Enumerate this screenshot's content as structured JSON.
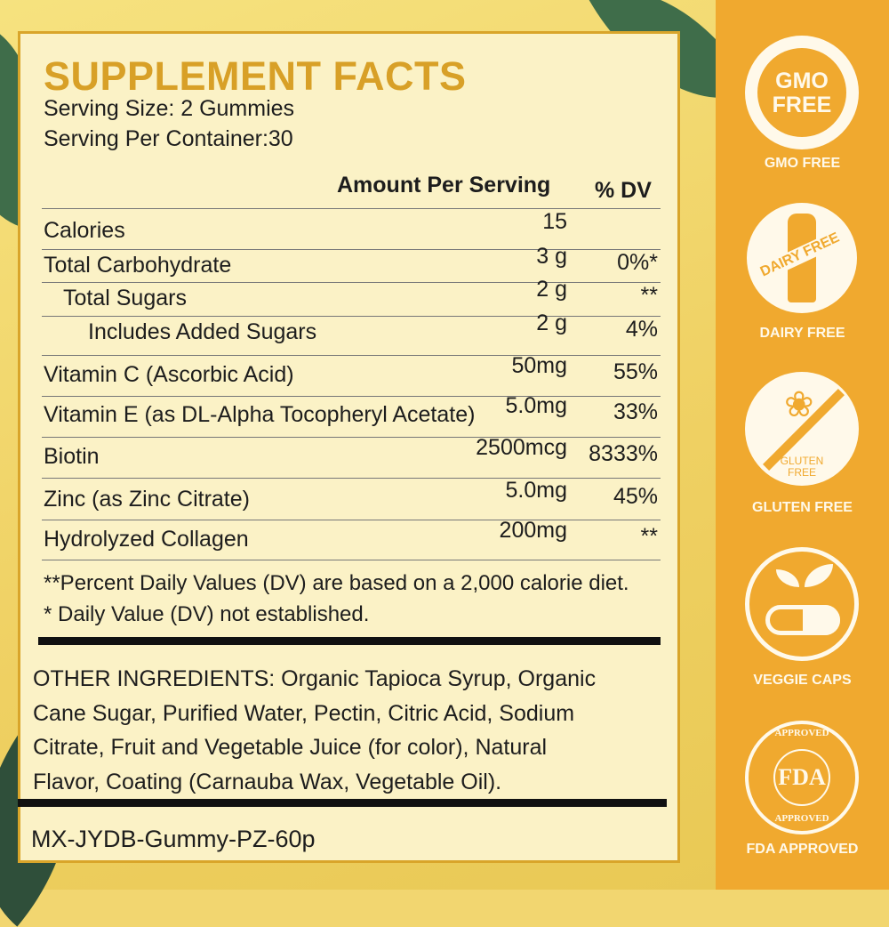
{
  "title": "SUPPLEMENT FACTS",
  "serving_size": "Serving Size: 2 Gummies",
  "servings_per_container": "Serving Per Container:30",
  "headers": {
    "amount": "Amount Per Serving",
    "dv": "% DV"
  },
  "rows": [
    {
      "name": "Calories",
      "amount": "15",
      "dv": ""
    },
    {
      "name": "Total Carbohydrate",
      "amount": "3 g",
      "dv": "0%*"
    },
    {
      "name": "Total Sugars",
      "amount": "2 g",
      "dv": "**"
    },
    {
      "name": "Includes Added Sugars",
      "amount": "2 g",
      "dv": "4%"
    },
    {
      "name": "Vitamin C (Ascorbic Acid)",
      "amount": "50mg",
      "dv": "55%"
    },
    {
      "name": "Vitamin E (as DL-Alpha Tocopheryl Acetate)",
      "amount": "5.0mg",
      "dv": "33%"
    },
    {
      "name": "Biotin",
      "amount": "2500mcg",
      "dv": "8333%"
    },
    {
      "name": "Zinc (as Zinc Citrate)",
      "amount": "5.0mg",
      "dv": "45%"
    },
    {
      "name": "Hydrolyzed Collagen",
      "amount": "200mg",
      "dv": "**"
    }
  ],
  "footnotes": [
    "**Percent Daily Values (DV) are based on a 2,000 calorie diet.",
    "* Daily Value (DV) not established."
  ],
  "ingredients": [
    "OTHER INGREDIENTS: Organic Tapioca Syrup, Organic",
    "Cane Sugar, Purified Water, Pectin, Citric Acid, Sodium",
    "Citrate, Fruit and Vegetable Juice (for color), Natural",
    "Flavor, Coating (Carnauba Wax, Vegetable Oil)."
  ],
  "product_code": "MX-JYDB-Gummy-PZ-60p",
  "badges": [
    {
      "label": "GMO FREE",
      "icon": "gmo-free-icon",
      "inner": [
        "GMO",
        "FREE"
      ]
    },
    {
      "label": "DAIRY FREE",
      "icon": "milk-bottle-icon",
      "inner": [
        "DAIRY FREE"
      ]
    },
    {
      "label": "GLUTEN FREE",
      "icon": "wheat-crossed-icon",
      "inner": [
        "GLUTEN",
        "FREE"
      ]
    },
    {
      "label": "VEGGIE CAPS",
      "icon": "capsule-sprout-icon"
    },
    {
      "label": "FDA APPROVED",
      "icon": "fda-seal-icon",
      "inner": [
        "FDA",
        "APPROVED"
      ]
    }
  ],
  "colors": {
    "accent": "#d8a027",
    "strip": "#f0a92f",
    "panel": "#fbf2c6"
  }
}
